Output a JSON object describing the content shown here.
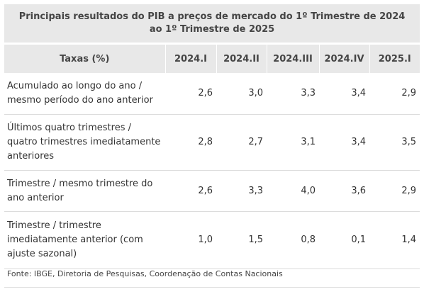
{
  "table": {
    "title": "Principais resultados do PIB a preços de mercado do 1º Trimestre de 2024 ao 1º Trimestre de 2025",
    "header": {
      "label_col": "Taxas (%)",
      "periods": [
        "2024.I",
        "2024.II",
        "2024.III",
        "2024.IV",
        "2025.I"
      ]
    },
    "rows": [
      {
        "label": "Acumulado ao longo do ano / mesmo período do ano anterior",
        "values": [
          "2,6",
          "3,0",
          "3,3",
          "3,4",
          "2,9"
        ]
      },
      {
        "label": "Últimos quatro trimestres / quatro trimestres imediatamente anteriores",
        "values": [
          "2,8",
          "2,7",
          "3,1",
          "3,4",
          "3,5"
        ]
      },
      {
        "label": "Trimestre / mesmo trimestre do ano anterior",
        "values": [
          "2,6",
          "3,3",
          "4,0",
          "3,6",
          "2,9"
        ]
      },
      {
        "label": "Trimestre / trimestre imediatamente anterior (com ajuste sazonal)",
        "values": [
          "1,0",
          "1,5",
          "0,8",
          "0,1",
          "1,4"
        ]
      }
    ],
    "source": "Fonte: IBGE, Diretoria de Pesquisas, Coordenação de Contas Nacionais"
  }
}
